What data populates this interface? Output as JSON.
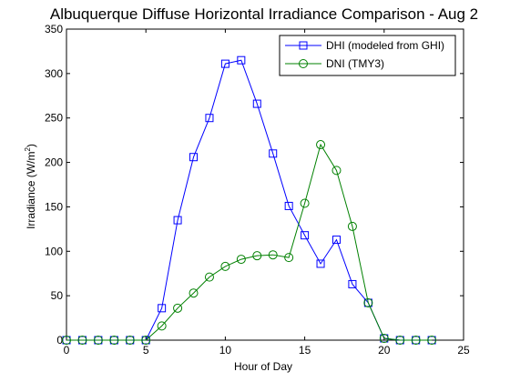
{
  "chart_data": {
    "type": "line",
    "title": "Albuquerque Diffuse Horizontal Irradiance Comparison - Aug 2",
    "xlabel": "Hour of Day",
    "ylabel_main": "Irradiance (W/m",
    "ylabel_sup": "2",
    "ylabel_close": ")",
    "xlim": [
      0,
      25
    ],
    "ylim": [
      0,
      350
    ],
    "xticks": [
      0,
      5,
      10,
      15,
      20,
      25
    ],
    "yticks": [
      0,
      50,
      100,
      150,
      200,
      250,
      300,
      350
    ],
    "grid": false,
    "legend_position": "top-right",
    "x": [
      0,
      1,
      2,
      3,
      4,
      5,
      6,
      7,
      8,
      9,
      10,
      11,
      12,
      13,
      14,
      15,
      16,
      17,
      18,
      19,
      20,
      21,
      22,
      23
    ],
    "series": [
      {
        "name": "DHI (modeled from GHI)",
        "color": "#0000ff",
        "marker": "square",
        "values": [
          0,
          0,
          0,
          0,
          0,
          0,
          36,
          135,
          206,
          250,
          311,
          315,
          266,
          210,
          151,
          118,
          86,
          113,
          63,
          42,
          2,
          0,
          0,
          0
        ]
      },
      {
        "name": "DNI (TMY3)",
        "color": "#008000",
        "marker": "circle",
        "values": [
          0,
          0,
          0,
          0,
          0,
          0,
          16,
          36,
          53,
          71,
          83,
          91,
          95,
          96,
          93,
          154,
          220,
          191,
          128,
          42,
          2,
          0,
          0,
          0
        ]
      }
    ]
  }
}
